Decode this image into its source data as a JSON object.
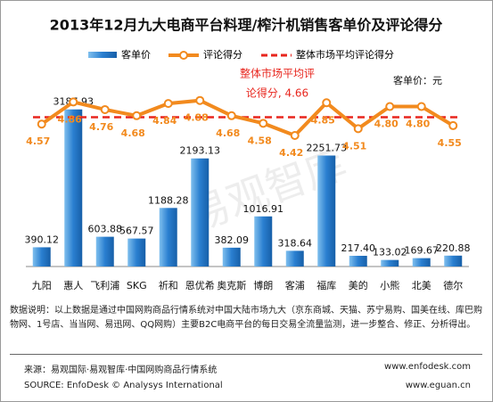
{
  "chart_data": {
    "type": "bar",
    "title": "2013年12月九大电商平台料理/榨汁机销售客单价及评论得分",
    "unit_label": "客单价：元",
    "watermark": "易观智库",
    "categories": [
      "九阳",
      "惠人",
      "飞利浦",
      "SKG",
      "祈和",
      "恩优希",
      "奥克斯",
      "博朗",
      "客浦",
      "福库",
      "美的",
      "小熊",
      "北美",
      "德尔"
    ],
    "ylim": [
      0,
      3400
    ],
    "y2lim": [
      2.7,
      4.9
    ],
    "series": [
      {
        "name": "客单价",
        "color": "#2a7fd0",
        "values": [
          390.12,
          3187.93,
          603.88,
          567.57,
          1188.28,
          2193.13,
          382.09,
          1016.91,
          318.64,
          2251.73,
          217.4,
          133.02,
          169.67,
          220.88
        ],
        "value_labels": [
          "390.12",
          "3187.93",
          "603.88",
          "567.57",
          "1188.28",
          "2193.13",
          "382.09",
          "1016.91",
          "318.64",
          "2251.73",
          "217.40",
          "133.02",
          "169.67",
          "220.88"
        ]
      },
      {
        "name": "评论得分",
        "type": "line",
        "axis": "y2",
        "color": "#f28a1e",
        "values": [
          4.57,
          4.86,
          4.76,
          4.68,
          4.84,
          4.88,
          4.68,
          4.58,
          4.42,
          4.85,
          4.51,
          4.8,
          4.8,
          4.55
        ],
        "value_labels": [
          "4.57",
          "4.86",
          "4.76",
          "4.68",
          "4.84",
          "4.88",
          "4.68",
          "4.58",
          "4.42",
          "4.85",
          "4.51",
          "4.80",
          "4.80",
          "4.55"
        ]
      }
    ],
    "average": {
      "name": "整体市场平均评论得分",
      "value": 4.66,
      "color": "#e8261e",
      "axis": "y2"
    },
    "annotation": [
      "整体市场平均评",
      "论得分, 4.66"
    ]
  },
  "notes": "数据说明：以上数据是通过中国网购商品行情系统对中国大陆市场九大（京东商城、天猫、苏宁易购、国美在线、库巴购物网、1号店、当当网、易迅网、QQ网购）主要B2C电商平台的每日交易全流量监测，进一步整合、修正、分析得出。",
  "footer": {
    "source_cn": "来源：易观国际·易观智库·中国网购商品行情系统",
    "site1": "www.enfodesk.com",
    "source_en": "SOURCE: EnfoDesk © Analysys International",
    "site2": "www.eguan.cn"
  }
}
